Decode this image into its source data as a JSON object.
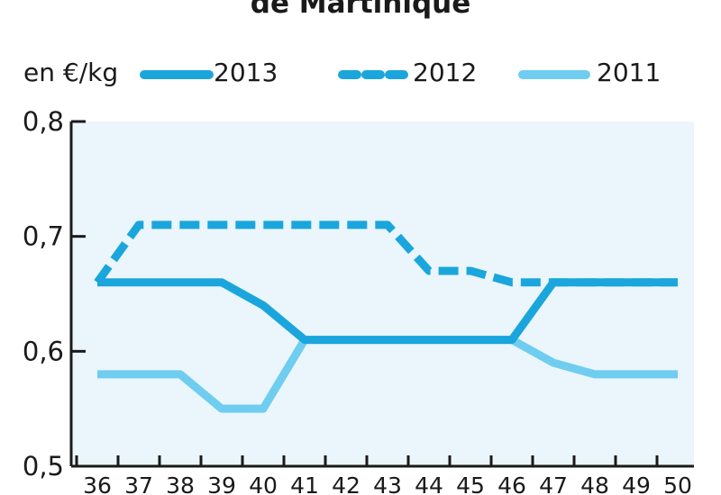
{
  "chart_data": {
    "type": "line",
    "title": "de Martinique",
    "unit_label": "en €/kg",
    "x": [
      "36",
      "37",
      "38",
      "39",
      "40",
      "41",
      "42",
      "43",
      "44",
      "45",
      "46",
      "47",
      "48",
      "49",
      "50"
    ],
    "ylim": [
      0.5,
      0.8
    ],
    "yticks": [
      "0,5",
      "0,6",
      "0,7",
      "0,8"
    ],
    "ytick_values": [
      0.5,
      0.6,
      0.7,
      0.8
    ],
    "grid": false,
    "legend_position": "top",
    "series": [
      {
        "name": "2013",
        "style": "solid-thick",
        "color": "#1aa6dc",
        "values": [
          0.66,
          0.66,
          0.66,
          0.66,
          0.64,
          0.61,
          0.61,
          0.61,
          0.61,
          0.61,
          0.61,
          0.66,
          0.66,
          0.66,
          0.66
        ]
      },
      {
        "name": "2012",
        "style": "dashed",
        "color": "#1aa6dc",
        "values": [
          0.66,
          0.71,
          0.71,
          0.71,
          0.71,
          0.71,
          0.71,
          0.71,
          0.67,
          0.67,
          0.66,
          0.66,
          0.66,
          0.66,
          0.66
        ]
      },
      {
        "name": "2011",
        "style": "solid-light",
        "color": "#6fcdf0",
        "values": [
          0.58,
          0.58,
          0.58,
          0.55,
          0.55,
          0.61,
          0.61,
          0.61,
          0.61,
          0.61,
          0.61,
          0.59,
          0.58,
          0.58,
          0.58
        ]
      }
    ]
  },
  "colors": {
    "plot_background": "#eaf6fc",
    "axis": "#1a1a1a"
  }
}
